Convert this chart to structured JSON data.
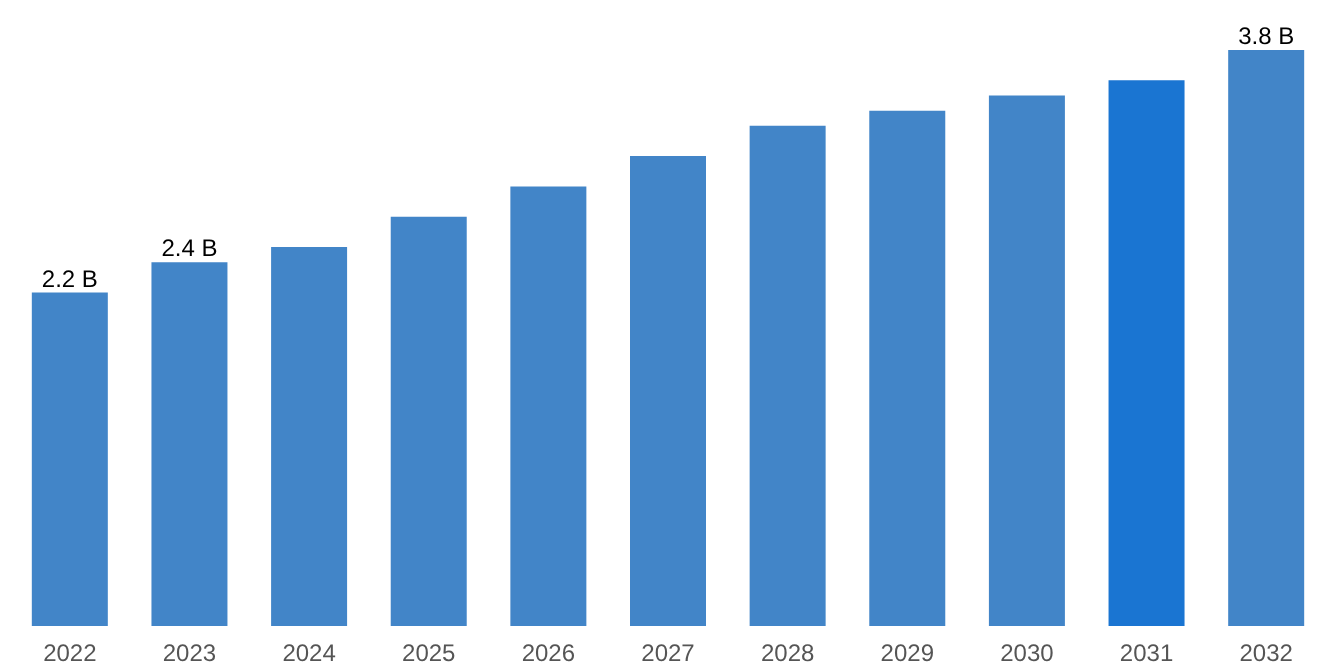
{
  "chart_data": {
    "type": "bar",
    "categories": [
      "2022",
      "2023",
      "2024",
      "2025",
      "2026",
      "2027",
      "2028",
      "2029",
      "2030",
      "2031",
      "2032"
    ],
    "values": [
      2.2,
      2.4,
      2.5,
      2.7,
      2.9,
      3.1,
      3.3,
      3.4,
      3.5,
      3.6,
      3.8
    ],
    "colors": [
      "#4285c8",
      "#4285c8",
      "#4285c8",
      "#4285c8",
      "#4285c8",
      "#4285c8",
      "#4285c8",
      "#4285c8",
      "#4285c8",
      "#1a75d2",
      "#4285c8"
    ],
    "value_labels": [
      "2.2 B",
      "2.4 B",
      null,
      null,
      null,
      null,
      null,
      null,
      null,
      null,
      "3.8 B"
    ],
    "grid": false
  }
}
